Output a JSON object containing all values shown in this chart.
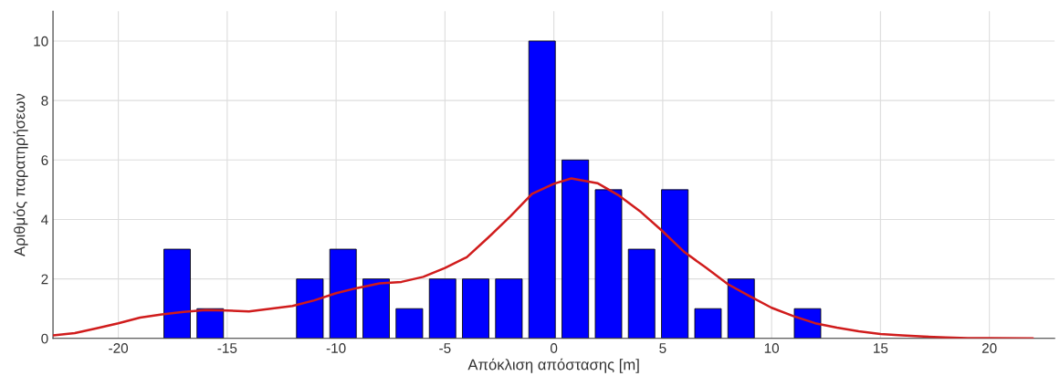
{
  "chart_data": {
    "type": "histogram",
    "xlabel": "Απόκλιση απόστασης [m]",
    "ylabel": "Αριθμός παρατηρήσεων",
    "bins": [
      -18.06,
      -16.54,
      -15.02,
      -13.49,
      -11.97,
      -10.44,
      -8.92,
      -7.4,
      -5.87,
      -4.35,
      -2.83,
      -1.3,
      0.22,
      1.75,
      3.27,
      4.79,
      6.32,
      7.84,
      9.36,
      10.89,
      12.41
    ],
    "values": [
      3,
      1,
      0,
      0,
      2,
      3,
      2,
      1,
      2,
      2,
      2,
      10,
      6,
      5,
      3,
      5,
      1,
      2,
      0,
      1
    ],
    "color": "#0000ff",
    "series": [
      {
        "type": "line",
        "color": "#d01c1c",
        "x": [
          -23,
          -22,
          -21,
          -20,
          -19,
          -18,
          -17,
          -16,
          -15,
          -14,
          -13,
          -12,
          -11,
          -10,
          -9,
          -8,
          -7,
          -6,
          -5,
          -4,
          -3,
          -2,
          -1,
          0,
          0.8,
          2,
          3,
          4,
          5,
          6,
          7,
          8,
          9,
          10,
          11,
          12,
          13,
          14,
          15,
          16,
          17,
          18,
          19,
          20,
          22
        ],
        "values": [
          0.1,
          0.18,
          0.34,
          0.51,
          0.7,
          0.81,
          0.89,
          0.95,
          0.94,
          0.91,
          1.0,
          1.09,
          1.28,
          1.52,
          1.7,
          1.85,
          1.9,
          2.07,
          2.37,
          2.73,
          3.4,
          4.1,
          4.86,
          5.2,
          5.38,
          5.22,
          4.8,
          4.25,
          3.6,
          2.9,
          2.37,
          1.82,
          1.42,
          1.03,
          0.75,
          0.51,
          0.36,
          0.24,
          0.15,
          0.1,
          0.06,
          0.03,
          0.01,
          0.01,
          0
        ]
      }
    ],
    "xlim": [
      -23,
      23
    ],
    "xticks": [
      -20,
      -15,
      -10,
      -5,
      0,
      5,
      10,
      15,
      20
    ],
    "ylim": [
      0,
      11
    ],
    "yticks": [
      0,
      2,
      4,
      6,
      8,
      10
    ],
    "grid": true
  }
}
